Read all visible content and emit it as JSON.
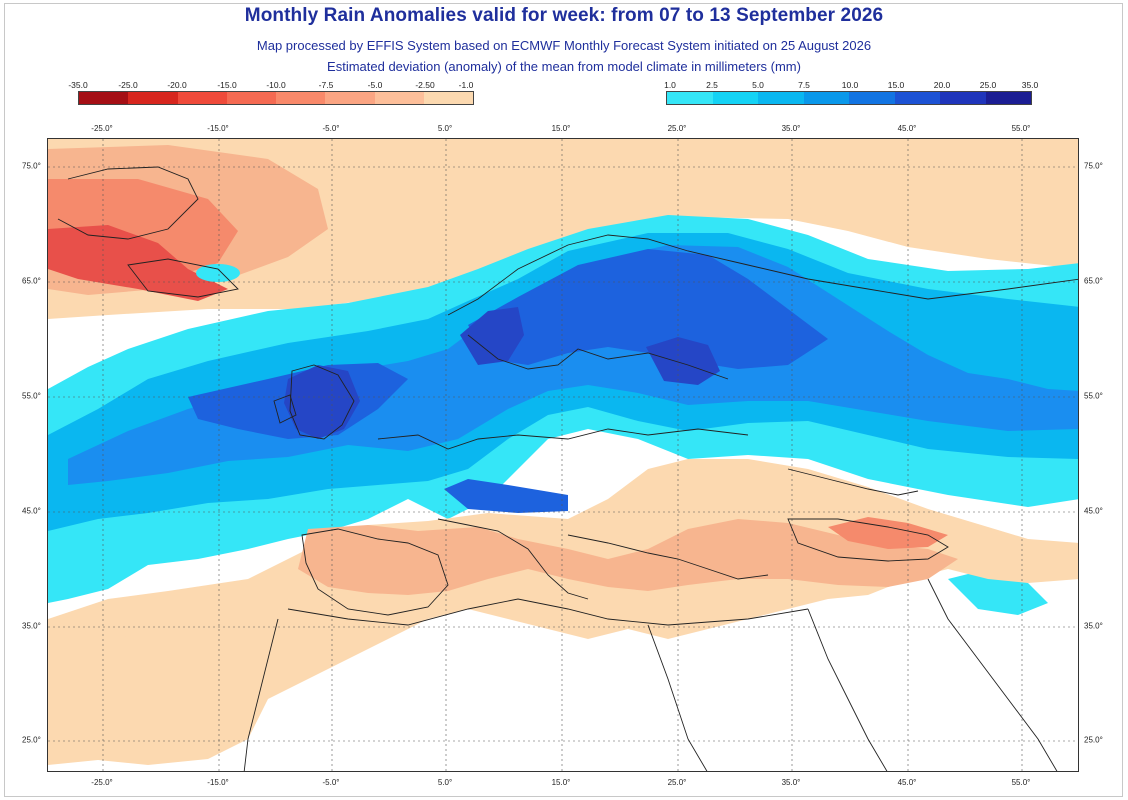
{
  "title": "Monthly Rain Anomalies valid for week: from 07 to 13 September 2026",
  "subtitle_1": "Map processed by EFFIS System based on ECMWF Monthly Forecast System initiated on 25 August 2026",
  "subtitle_2": "Estimated deviation (anomaly) of the mean from model climate in millimeters (mm)",
  "legend_negative": {
    "ticks": [
      "-35.0",
      "-25.0",
      "-20.0",
      "-15.0",
      "-10.0",
      "-7.5",
      "-5.0",
      "-2.50",
      "-1.0"
    ],
    "colors": [
      "#a50f15",
      "#d7261e",
      "#ef4a3a",
      "#f56a52",
      "#f9896a",
      "#fba583",
      "#fdbf9a",
      "#fcd9b0"
    ]
  },
  "legend_positive": {
    "ticks": [
      "1.0",
      "2.5",
      "5.0",
      "7.5",
      "10.0",
      "15.0",
      "20.0",
      "25.0",
      "35.0"
    ],
    "colors": [
      "#35e6f7",
      "#14d3f5",
      "#0ab7f0",
      "#0a98ea",
      "#1274e2",
      "#1c52d4",
      "#1f35bb",
      "#1b1d93"
    ]
  },
  "longitude_ticks": [
    "-25.0°",
    "-15.0°",
    "-5.0°",
    "5.0°",
    "15.0°",
    "25.0°",
    "35.0°",
    "45.0°",
    "55.0°"
  ],
  "latitude_ticks": [
    "75.0°",
    "65.0°",
    "55.0°",
    "45.0°",
    "35.0°",
    "25.0°"
  ],
  "map_colors": {
    "ocean_none": "#ffffff",
    "dry_light": "#fcd9b0",
    "dry_medium": "#f7b58f",
    "dry_strong": "#f58a6c",
    "dry_severe": "#e8504a",
    "wet_light": "#35e6f7",
    "wet_medium": "#0ab7f0",
    "wet_strong": "#1a8ef0",
    "wet_heavy": "#1d62de",
    "wet_severe": "#2546c6",
    "coastline": "#222222",
    "gridline": "#555555"
  }
}
